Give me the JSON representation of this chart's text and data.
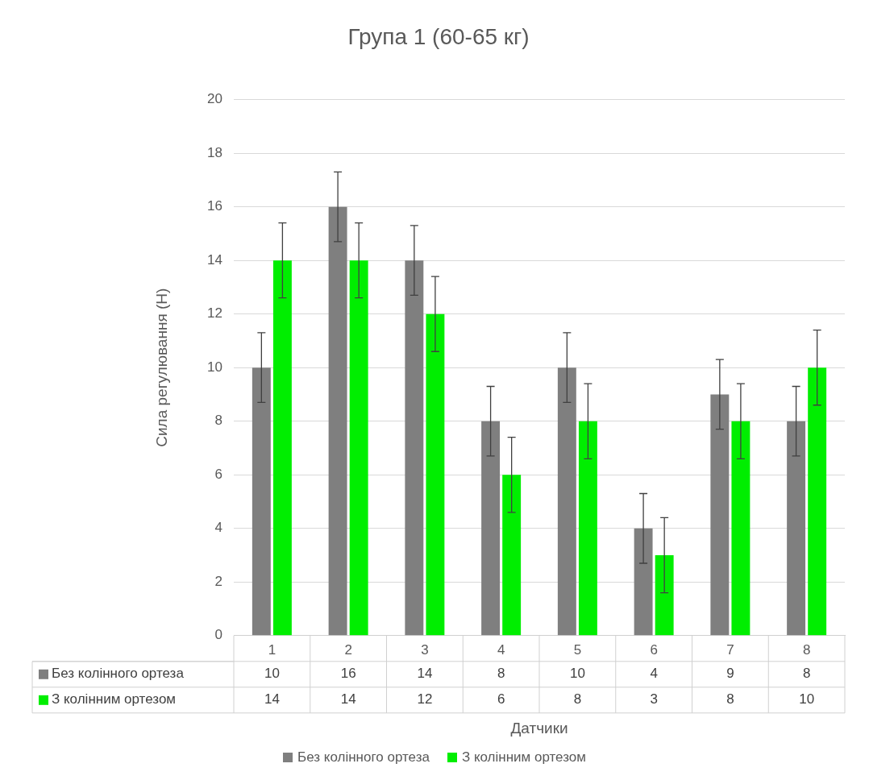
{
  "chart_data": {
    "type": "bar",
    "title": "Група 1 (60-65 кг)",
    "xlabel": "Датчики",
    "ylabel": "Сила регулювання (Н)",
    "categories": [
      "1",
      "2",
      "3",
      "4",
      "5",
      "6",
      "7",
      "8"
    ],
    "series": [
      {
        "name": "Без колінного ортеза",
        "color": "#7f7f7f",
        "values": [
          10,
          16,
          14,
          8,
          10,
          4,
          9,
          8
        ],
        "errors": [
          1.3,
          1.3,
          1.3,
          1.3,
          1.3,
          1.3,
          1.3,
          1.3
        ]
      },
      {
        "name": "З колінним ортезом",
        "color": "#00ee00",
        "values": [
          14,
          14,
          12,
          6,
          8,
          3,
          8,
          10
        ],
        "errors": [
          1.4,
          1.4,
          1.4,
          1.4,
          1.4,
          1.4,
          1.4,
          1.4
        ]
      }
    ],
    "ylim": [
      0,
      20
    ],
    "yticks": [
      0,
      2,
      4,
      6,
      8,
      10,
      12,
      14,
      16,
      18,
      20
    ],
    "grid": "y",
    "legend": "bottom",
    "data_labels": true
  }
}
